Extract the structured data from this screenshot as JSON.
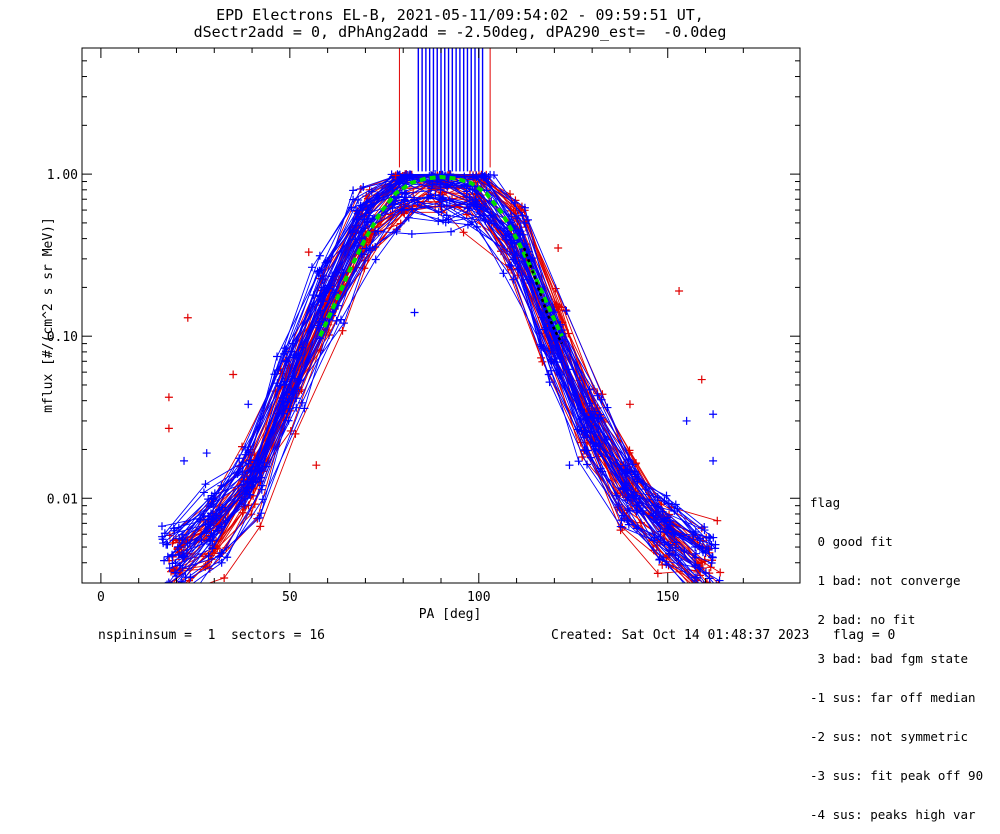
{
  "title": {
    "line1": "EPD Electrons EL-B, 2021-05-11/09:54:02 - 09:59:51 UT,",
    "line2": "dSectr2add = 0, dPhAng2add = -2.50deg, dPA290_est=  -0.0deg"
  },
  "legend": {
    "heading": "flag",
    "items": [
      " 0 good fit",
      " 1 bad: not converge",
      " 2 bad: no fit",
      " 3 bad: bad fgm state",
      "-1 sus: far off median",
      "-2 sus: not symmetric",
      "-3 sus: fit peak off 90",
      "-4 sus: peaks high var"
    ]
  },
  "footer": {
    "left": "nspininsum =  1  sectors = 16",
    "created": "Created: Sat Oct 14 01:48:37 2023",
    "flag": "flag = 0"
  },
  "colors": {
    "red_series": "#e00000",
    "blue_series": "#0000ff",
    "green_fit": "#00dd00",
    "black_fit": "#000000"
  },
  "chart_data": {
    "type": "line",
    "xlabel": "PA [deg]",
    "ylabel": "mflux [#/(cm^2 s sr MeV)]",
    "xlim": [
      -5,
      185
    ],
    "ylim": [
      0.003,
      6.0
    ],
    "yscale": "log",
    "xticks": [
      0,
      50,
      100,
      150
    ],
    "xtick_labels": [
      "0",
      "50",
      "100",
      "150"
    ],
    "yticks": [
      0.01,
      0.1,
      1.0
    ],
    "ytick_labels": [
      "0.01",
      "0.10",
      "1.00"
    ],
    "grid": false,
    "legend_position": "right",
    "red_bundle": {
      "count": 35,
      "pa": [
        20,
        30,
        40,
        50,
        60,
        70,
        80,
        90,
        100,
        110,
        120,
        130,
        140,
        150,
        160
      ],
      "flux": [
        0.004,
        0.006,
        0.012,
        0.045,
        0.15,
        0.45,
        0.82,
        0.9,
        0.8,
        0.42,
        0.11,
        0.03,
        0.011,
        0.006,
        0.004
      ]
    },
    "blue_bundle": {
      "count": 40,
      "pa": [
        20,
        30,
        40,
        50,
        60,
        70,
        80,
        90,
        100,
        110,
        120,
        130,
        140,
        150,
        160
      ],
      "flux": [
        0.004,
        0.007,
        0.013,
        0.05,
        0.17,
        0.5,
        0.78,
        0.8,
        0.72,
        0.38,
        0.09,
        0.025,
        0.01,
        0.006,
        0.004
      ]
    },
    "red_outliers": [
      {
        "pa": 18,
        "flux": 0.042
      },
      {
        "pa": 18,
        "flux": 0.027
      },
      {
        "pa": 23,
        "flux": 0.13
      },
      {
        "pa": 35,
        "flux": 0.058
      },
      {
        "pa": 55,
        "flux": 0.33
      },
      {
        "pa": 57,
        "flux": 0.016
      },
      {
        "pa": 78,
        "flux": 0.98
      },
      {
        "pa": 121,
        "flux": 0.35
      },
      {
        "pa": 153,
        "flux": 0.19
      },
      {
        "pa": 159,
        "flux": 0.054
      },
      {
        "pa": 140,
        "flux": 0.038
      }
    ],
    "blue_outliers": [
      {
        "pa": 83,
        "flux": 0.14
      },
      {
        "pa": 103,
        "flux": 0.99
      },
      {
        "pa": 22,
        "flux": 0.017
      },
      {
        "pa": 28,
        "flux": 0.019
      },
      {
        "pa": 39,
        "flux": 0.038
      },
      {
        "pa": 124,
        "flux": 0.016
      },
      {
        "pa": 162,
        "flux": 0.033
      },
      {
        "pa": 162,
        "flux": 0.017
      },
      {
        "pa": 155,
        "flux": 0.03
      }
    ],
    "spikes": {
      "red_pa": [
        79,
        84,
        85,
        89,
        91,
        93,
        96,
        99,
        103
      ],
      "blue_pa": [
        84,
        85,
        86,
        87,
        88,
        89,
        90,
        91,
        92,
        93,
        94,
        95,
        96,
        97,
        98,
        99,
        100,
        101
      ]
    },
    "green_fit": {
      "pa": [
        58,
        62,
        66,
        70,
        74,
        78,
        82,
        86,
        90,
        94,
        98,
        102,
        106,
        110,
        114,
        118,
        122
      ],
      "flux": [
        0.1,
        0.16,
        0.26,
        0.4,
        0.58,
        0.76,
        0.88,
        0.94,
        0.96,
        0.94,
        0.88,
        0.76,
        0.58,
        0.4,
        0.26,
        0.16,
        0.1
      ]
    },
    "black_fit": {
      "pa": [
        112,
        114,
        116,
        118,
        120,
        122
      ],
      "flux": [
        0.35,
        0.26,
        0.19,
        0.14,
        0.11,
        0.09
      ]
    }
  }
}
